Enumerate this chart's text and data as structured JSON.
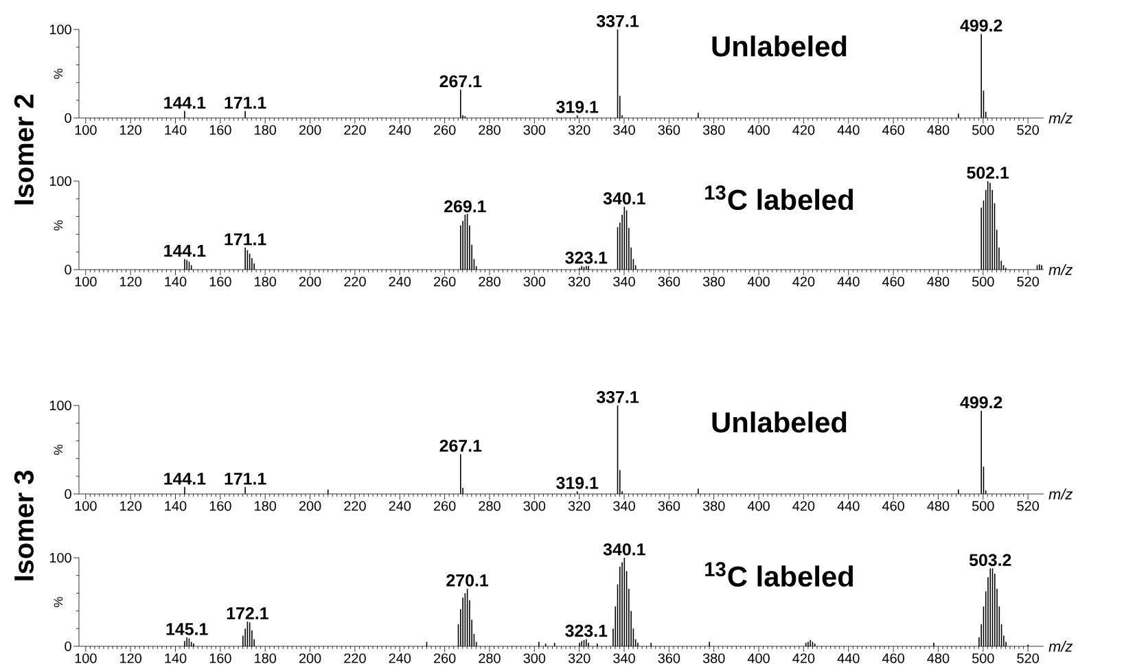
{
  "chart_data": [
    {
      "type": "bar",
      "title": "Unlabeled",
      "xlabel": "m/z",
      "ylabel": "%",
      "color": "#000000",
      "xlim": [
        97,
        527
      ],
      "xticks": [
        100,
        120,
        140,
        160,
        180,
        200,
        220,
        240,
        260,
        280,
        300,
        320,
        340,
        360,
        380,
        400,
        420,
        440,
        460,
        480,
        500,
        520
      ],
      "ylim": [
        0,
        100
      ],
      "yticks": [
        0,
        100
      ],
      "x": [
        144.1,
        171.1,
        267.1,
        268.1,
        269.1,
        319.1,
        337.1,
        338.1,
        339.1,
        373,
        489,
        499.2,
        500.2,
        501.2
      ],
      "values": [
        8,
        8,
        32,
        3,
        2,
        3,
        100,
        25,
        3,
        6,
        5,
        95,
        31,
        7
      ],
      "annotations": [
        "Isomer 2",
        {
          "text": "144.1",
          "x": 144.1,
          "y": 8
        },
        {
          "text": "171.1",
          "x": 171.1,
          "y": 8
        },
        {
          "text": "267.1",
          "x": 267.1,
          "y": 32
        },
        {
          "text": "319.1",
          "x": 319.1,
          "y": 3
        },
        {
          "text": "337.1",
          "x": 337.1,
          "y": 100
        },
        {
          "text": "499.2",
          "x": 499.2,
          "y": 95
        }
      ]
    },
    {
      "type": "bar",
      "title": "$^{13}$C labeled",
      "xlabel": "m/z",
      "ylabel": "%",
      "color": "#000000",
      "xlim": [
        97,
        527
      ],
      "xticks": [
        100,
        120,
        140,
        160,
        180,
        200,
        220,
        240,
        260,
        280,
        300,
        320,
        340,
        360,
        380,
        400,
        420,
        440,
        460,
        480,
        500,
        520
      ],
      "ylim": [
        0,
        100
      ],
      "yticks": [
        0,
        100
      ],
      "x": [
        144.1,
        145.1,
        146.1,
        147.1,
        171.1,
        172.1,
        173.1,
        174.1,
        175.1,
        267.1,
        268.1,
        269.1,
        270.1,
        271.1,
        272.1,
        273.1,
        274.1,
        320.1,
        321.1,
        322.1,
        323.1,
        324.1,
        337.1,
        338.1,
        339.1,
        340.1,
        341.1,
        342.1,
        343.1,
        344.1,
        345.1,
        499.2,
        500.2,
        501.2,
        502.1,
        503.1,
        504.1,
        505.1,
        506.1,
        507.1,
        508.1,
        509.1,
        510.1,
        524.1,
        525.1,
        526.1
      ],
      "values": [
        12,
        11,
        9,
        5,
        25,
        22,
        18,
        13,
        7,
        50,
        55,
        62,
        63,
        50,
        28,
        12,
        4,
        2,
        4,
        3,
        4,
        4,
        48,
        53,
        62,
        71,
        67,
        47,
        25,
        12,
        5,
        70,
        78,
        90,
        100,
        98,
        90,
        75,
        45,
        25,
        10,
        5,
        2,
        5,
        6,
        5
      ],
      "annotations": [
        {
          "text": "144.1",
          "x": 144.1,
          "y": 12
        },
        {
          "text": "171.1",
          "x": 171.1,
          "y": 25
        },
        {
          "text": "269.1",
          "x": 269.1,
          "y": 62
        },
        {
          "text": "323.1",
          "x": 323.1,
          "y": 4
        },
        {
          "text": "340.1",
          "x": 340.1,
          "y": 71
        },
        {
          "text": "502.1",
          "x": 502.1,
          "y": 100
        }
      ]
    },
    {
      "type": "bar",
      "title": "Unlabeled",
      "xlabel": "m/z",
      "ylabel": "%",
      "color": "#000000",
      "xlim": [
        97,
        527
      ],
      "xticks": [
        100,
        120,
        140,
        160,
        180,
        200,
        220,
        240,
        260,
        280,
        300,
        320,
        340,
        360,
        380,
        400,
        420,
        440,
        460,
        480,
        500,
        520
      ],
      "ylim": [
        0,
        100
      ],
      "yticks": [
        0,
        100
      ],
      "x": [
        144.1,
        171.1,
        208,
        267.1,
        268.1,
        319.1,
        337.1,
        338.1,
        339.1,
        373,
        489,
        499.2,
        500.2,
        501.2
      ],
      "values": [
        8,
        8,
        5,
        45,
        7,
        3,
        100,
        27,
        3,
        6,
        5,
        94,
        31,
        4
      ],
      "annotations": [
        "Isomer 3",
        {
          "text": "144.1",
          "x": 144.1,
          "y": 8
        },
        {
          "text": "171.1",
          "x": 171.1,
          "y": 8
        },
        {
          "text": "267.1",
          "x": 267.1,
          "y": 45
        },
        {
          "text": "319.1",
          "x": 319.1,
          "y": 3
        },
        {
          "text": "337.1",
          "x": 337.1,
          "y": 100
        },
        {
          "text": "499.2",
          "x": 499.2,
          "y": 94
        }
      ]
    },
    {
      "type": "bar",
      "title": "$^{13}$C labeled",
      "xlabel": "m/z",
      "ylabel": "%",
      "color": "#000000",
      "xlim": [
        97,
        527
      ],
      "xticks": [
        100,
        120,
        140,
        160,
        180,
        200,
        220,
        240,
        260,
        280,
        300,
        320,
        340,
        360,
        380,
        400,
        420,
        440,
        460,
        480,
        500,
        520
      ],
      "ylim": [
        0,
        100
      ],
      "yticks": [
        0,
        100
      ],
      "x": [
        144.1,
        145.1,
        146.1,
        147.1,
        148.1,
        170.1,
        171.1,
        172.1,
        173.1,
        174.1,
        175.1,
        252,
        266.1,
        267.1,
        268.1,
        269.1,
        270.1,
        271.1,
        272.1,
        273.1,
        274.1,
        302,
        305,
        309,
        320.1,
        321.1,
        322.1,
        323.1,
        324.1,
        328,
        335.1,
        336.1,
        337.1,
        338.1,
        339.1,
        340.1,
        341.1,
        342.1,
        343.1,
        344.1,
        345.1,
        346.1,
        352,
        378,
        421,
        422,
        423,
        424,
        425,
        478,
        498.2,
        499.2,
        500.2,
        501.2,
        502.2,
        503.2,
        504.2,
        505.2,
        506.2,
        507.2,
        508.2,
        509.2,
        510.2,
        520
      ],
      "values": [
        6,
        10,
        9,
        5,
        3,
        12,
        20,
        28,
        27,
        18,
        8,
        5,
        25,
        42,
        55,
        60,
        65,
        52,
        30,
        14,
        5,
        5,
        3,
        4,
        4,
        6,
        7,
        8,
        4,
        3,
        20,
        45,
        70,
        90,
        95,
        100,
        85,
        65,
        40,
        20,
        8,
        4,
        4,
        5,
        4,
        5,
        7,
        5,
        3,
        4,
        10,
        25,
        45,
        62,
        78,
        88,
        88,
        82,
        65,
        45,
        25,
        12,
        5,
        2
      ],
      "annotations": [
        {
          "text": "145.1",
          "x": 145.1,
          "y": 10
        },
        {
          "text": "172.1",
          "x": 172.1,
          "y": 28
        },
        {
          "text": "270.1",
          "x": 270.1,
          "y": 65
        },
        {
          "text": "323.1",
          "x": 323.1,
          "y": 8
        },
        {
          "text": "340.1",
          "x": 340.1,
          "y": 100
        },
        {
          "text": "503.2",
          "x": 503.2,
          "y": 88
        }
      ]
    }
  ]
}
